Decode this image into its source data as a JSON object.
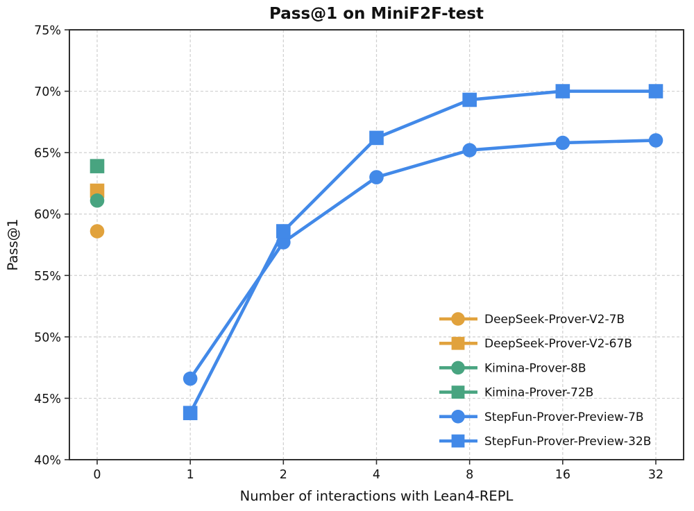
{
  "chart_data": {
    "type": "line",
    "title": "Pass@1 on MiniF2F-test",
    "xlabel": "Number of interactions with Lean4-REPL",
    "ylabel": "Pass@1",
    "categories": [
      0,
      1,
      2,
      4,
      8,
      16,
      32
    ],
    "x_tick_labels": [
      "0",
      "1",
      "2",
      "4",
      "8",
      "16",
      "32"
    ],
    "ylim": [
      40,
      75
    ],
    "yticks": [
      40,
      45,
      50,
      55,
      60,
      65,
      70,
      75
    ],
    "y_tick_labels": [
      "40%",
      "45%",
      "50%",
      "55%",
      "60%",
      "65%",
      "70%",
      "75%"
    ],
    "grid": true,
    "grid_style": "dashed",
    "legend_position": "lower right",
    "colors": {
      "orange": "#E1A23C",
      "green": "#48A480",
      "blue": "#4289E8",
      "grid": "#cfcfcf",
      "frame": "#2e2e2e",
      "text": "#111111"
    },
    "series": [
      {
        "name": "DeepSeek-Prover-V2-7B",
        "color": "#E1A23C",
        "marker": "circle",
        "points": [
          {
            "x": 0,
            "y": 58.6
          }
        ]
      },
      {
        "name": "DeepSeek-Prover-V2-67B",
        "color": "#E1A23C",
        "marker": "square",
        "points": [
          {
            "x": 0,
            "y": 61.9
          }
        ]
      },
      {
        "name": "Kimina-Prover-8B",
        "color": "#48A480",
        "marker": "circle",
        "points": [
          {
            "x": 0,
            "y": 61.1
          }
        ]
      },
      {
        "name": "Kimina-Prover-72B",
        "color": "#48A480",
        "marker": "square",
        "points": [
          {
            "x": 0,
            "y": 63.9
          }
        ]
      },
      {
        "name": "StepFun-Prover-Preview-7B",
        "color": "#4289E8",
        "marker": "circle",
        "points": [
          {
            "x": 1,
            "y": 46.6
          },
          {
            "x": 2,
            "y": 57.7
          },
          {
            "x": 4,
            "y": 63.0
          },
          {
            "x": 8,
            "y": 65.2
          },
          {
            "x": 16,
            "y": 65.8
          },
          {
            "x": 32,
            "y": 66.0
          }
        ]
      },
      {
        "name": "StepFun-Prover-Preview-32B",
        "color": "#4289E8",
        "marker": "square",
        "points": [
          {
            "x": 1,
            "y": 43.8
          },
          {
            "x": 2,
            "y": 58.6
          },
          {
            "x": 4,
            "y": 66.2
          },
          {
            "x": 8,
            "y": 69.3
          },
          {
            "x": 16,
            "y": 70.0
          },
          {
            "x": 32,
            "y": 70.0
          }
        ]
      }
    ]
  }
}
